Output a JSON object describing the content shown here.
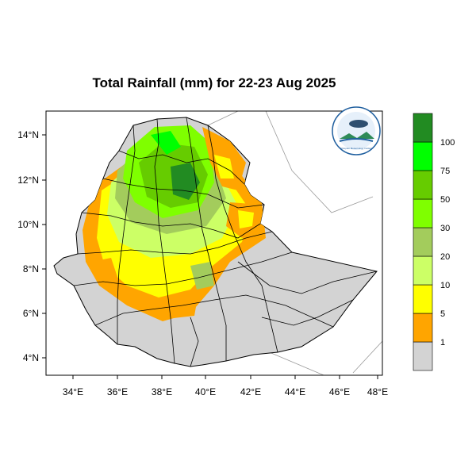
{
  "title": "Total Rainfall (mm) for 22-23 Aug 2025",
  "map": {
    "x_ticks": [
      "34°E",
      "36°E",
      "38°E",
      "40°E",
      "42°E",
      "44°E",
      "46°E",
      "48°E"
    ],
    "y_ticks": [
      "14°N",
      "12°N",
      "10°N",
      "8°N",
      "6°N",
      "4°N"
    ]
  },
  "legend": {
    "colors": [
      "#d3d3d3",
      "#ffa500",
      "#ffff00",
      "#ccff66",
      "#a3cc5c",
      "#7fff00",
      "#66cc00",
      "#00ff00",
      "#228b22"
    ],
    "labels": [
      "1",
      "5",
      "10",
      "20",
      "30",
      "50",
      "75",
      "100"
    ]
  },
  "logo": {
    "text": "Ethiopian Meteorology Institute"
  },
  "colors": {
    "land": "#d3d3d3",
    "border": "#000000",
    "frame": "#000000"
  }
}
